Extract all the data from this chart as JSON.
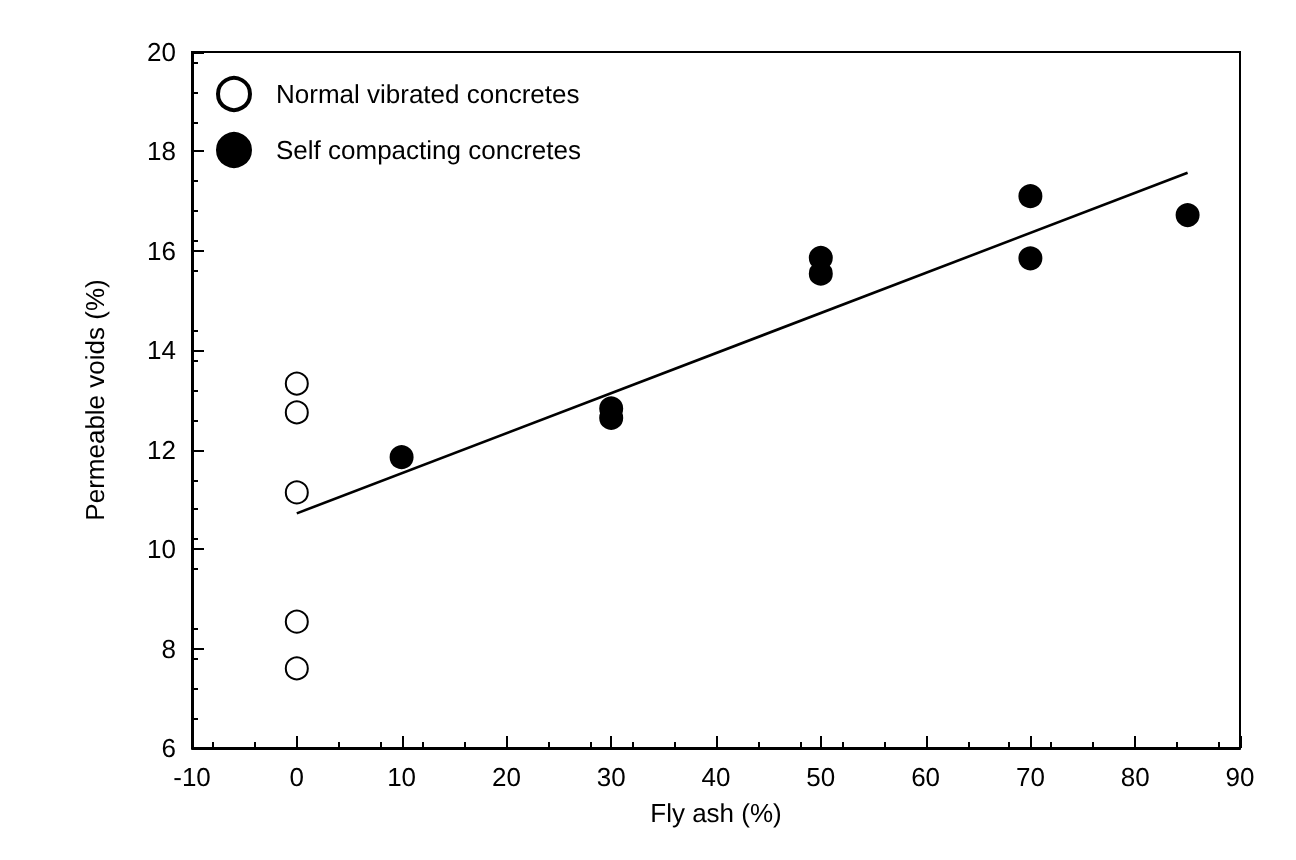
{
  "chart_data": {
    "type": "scatter",
    "xlabel": "Fly ash (%)",
    "ylabel": "Permeable voids (%)",
    "xlim": [
      -10,
      90
    ],
    "xticks": [
      -10,
      0,
      10,
      20,
      30,
      40,
      50,
      60,
      70,
      80,
      90
    ],
    "ylim": [
      6,
      20
    ],
    "yticks": [
      6,
      8,
      10,
      12,
      14,
      16,
      18,
      20
    ],
    "legend": "top left",
    "grid": false,
    "marker": "circle",
    "series": [
      {
        "name": "Normal vibrated concretes",
        "color": "#ffffff",
        "x": [
          0,
          0,
          0,
          0,
          0
        ],
        "values": [
          13.33,
          12.75,
          11.14,
          8.54,
          7.6
        ]
      },
      {
        "name": "Self compacting concretes",
        "color": "#000000",
        "x": [
          10,
          30,
          30,
          50,
          50,
          70,
          70,
          85
        ],
        "values": [
          11.85,
          12.83,
          12.64,
          15.86,
          15.54,
          17.1,
          15.85,
          16.72
        ]
      },
      {
        "type": "line",
        "marker": "none",
        "color": "#000000",
        "x": [
          0,
          85
        ],
        "values": [
          10.72,
          17.57
        ]
      }
    ]
  }
}
